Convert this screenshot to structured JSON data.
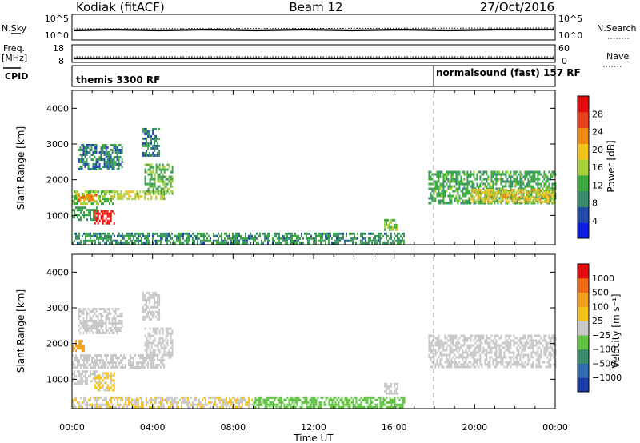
{
  "header": {
    "station": "Kodiak (fitACF)",
    "beam": "Beam 12",
    "date": "27/Oct/2016"
  },
  "strips": {
    "nsky": {
      "label": "N.Sky",
      "ticks": [
        "10^5",
        "10^0"
      ],
      "right_ticks": [
        "10^5",
        "10^0"
      ],
      "right_label": "N.Search"
    },
    "freq": {
      "label_line1": "Freq.",
      "label_line2": "[MHz]",
      "ticks": [
        "18",
        "8"
      ],
      "right_ticks": [
        "60",
        "0"
      ],
      "right_label": "Nave"
    },
    "cpid": {
      "label": "CPID",
      "modes": [
        {
          "text": "themis 3300 RF",
          "start_hour": 0
        },
        {
          "text": "normalsound (fast) 157 RF",
          "start_hour": 18
        }
      ]
    }
  },
  "colors": {
    "power_scale": [
      "#0a1ee6",
      "#1f4aa8",
      "#3a8c6a",
      "#3daa3d",
      "#a8d13a",
      "#f0c21a",
      "#f08a12",
      "#e8401a",
      "#e60a0a"
    ],
    "velocity_scale": [
      "#1a3aa8",
      "#2f6bb0",
      "#3a8c6a",
      "#5fc43f",
      "#c8c8c8",
      "#f2c21a",
      "#f2a01a",
      "#f06a12",
      "#e60a0a"
    ]
  },
  "chart_data": [
    {
      "type": "heatmap",
      "panel": "power",
      "ylabel": "Slant Range [km]",
      "xlim": [
        0,
        24
      ],
      "ylim": [
        180,
        4500
      ],
      "yticks": [
        "1000",
        "2000",
        "3000",
        "4000"
      ],
      "colorbar": {
        "label": "Power [dB]",
        "ticks": [
          "28",
          "24",
          "20",
          "16",
          "12",
          "8",
          "4"
        ],
        "range": [
          0,
          30
        ]
      },
      "regions": [
        {
          "t0": 0.0,
          "t1": 2.0,
          "r0": 1350,
          "r1": 1700,
          "v": 14
        },
        {
          "t0": 0.3,
          "t1": 1.2,
          "r0": 1400,
          "r1": 1600,
          "v": 22
        },
        {
          "t0": 2.0,
          "t1": 4.6,
          "r0": 1450,
          "r1": 1700,
          "v": 16
        },
        {
          "t0": 3.6,
          "t1": 5.0,
          "r0": 1600,
          "r1": 2450,
          "v": 12
        },
        {
          "t0": 0.3,
          "t1": 2.5,
          "r0": 2300,
          "r1": 3000,
          "v": 8
        },
        {
          "t0": 0.0,
          "t1": 1.2,
          "r0": 900,
          "r1": 1250,
          "v": 10
        },
        {
          "t0": 1.1,
          "t1": 2.1,
          "r0": 780,
          "r1": 1150,
          "v": 28
        },
        {
          "t0": 3.5,
          "t1": 4.3,
          "r0": 2700,
          "r1": 3450,
          "v": 8
        },
        {
          "t0": 0.0,
          "t1": 16.5,
          "r0": 200,
          "r1": 520,
          "v": 9
        },
        {
          "t0": 15.5,
          "t1": 16.2,
          "r0": 600,
          "r1": 900,
          "v": 14
        },
        {
          "t0": 17.7,
          "t1": 24.0,
          "r0": 1350,
          "r1": 2250,
          "v": 11
        },
        {
          "t0": 19.8,
          "t1": 24.0,
          "r0": 1400,
          "r1": 1750,
          "v": 18
        }
      ]
    },
    {
      "type": "heatmap",
      "panel": "velocity",
      "ylabel": "Slant Range [km]",
      "xlabel": "Time UT",
      "xlim": [
        0,
        24
      ],
      "ylim": [
        180,
        4500
      ],
      "xticks": [
        "00:00",
        "04:00",
        "08:00",
        "12:00",
        "16:00",
        "20:00",
        "00:00"
      ],
      "yticks": [
        "1000",
        "2000",
        "3000",
        "4000"
      ],
      "colorbar": {
        "label": "Velocity [m s⁻¹]",
        "ticks": [
          "1000",
          "500",
          "100",
          "25",
          "−25",
          "−100",
          "−500",
          "−1000"
        ],
        "range": [
          -1200,
          1200
        ]
      },
      "regions": [
        {
          "t0": 0.0,
          "t1": 4.6,
          "r0": 1350,
          "r1": 1700,
          "v": 0
        },
        {
          "t0": 3.6,
          "t1": 5.0,
          "r0": 1600,
          "r1": 2450,
          "v": 0
        },
        {
          "t0": 0.3,
          "t1": 2.5,
          "r0": 2300,
          "r1": 3000,
          "v": 0
        },
        {
          "t0": 0.0,
          "t1": 1.2,
          "r0": 900,
          "r1": 1250,
          "v": 0
        },
        {
          "t0": 1.1,
          "t1": 2.1,
          "r0": 700,
          "r1": 1200,
          "v": 150
        },
        {
          "t0": 0.0,
          "t1": 0.6,
          "r0": 1800,
          "r1": 2100,
          "v": 600
        },
        {
          "t0": 3.5,
          "t1": 4.3,
          "r0": 2700,
          "r1": 3450,
          "v": 0
        },
        {
          "t0": 0.0,
          "t1": 9.0,
          "r0": 200,
          "r1": 520,
          "v": 120
        },
        {
          "t0": 9.0,
          "t1": 16.5,
          "r0": 200,
          "r1": 520,
          "v": -200
        },
        {
          "t0": 15.5,
          "t1": 16.2,
          "r0": 600,
          "r1": 900,
          "v": 0
        },
        {
          "t0": 17.7,
          "t1": 24.0,
          "r0": 1350,
          "r1": 2250,
          "v": 0
        }
      ]
    }
  ]
}
